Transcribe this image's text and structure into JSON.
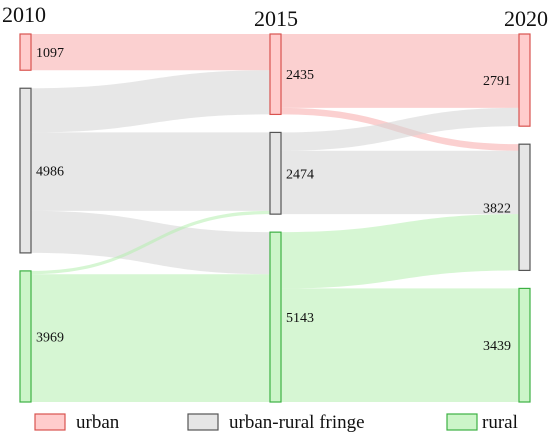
{
  "chart_data": {
    "type": "sankey",
    "columns": [
      "2010",
      "2015",
      "2020"
    ],
    "categories": [
      {
        "key": "urban",
        "label": "urban",
        "fill": "#ffcccc",
        "stroke": "#d9534f",
        "flow": "#f8a9a9"
      },
      {
        "key": "fringe",
        "label": "urban-rural fringe",
        "fill": "#e6e6e6",
        "stroke": "#555555",
        "flow": "#d3d3d3"
      },
      {
        "key": "rural",
        "label": "rural",
        "fill": "#ccf5c8",
        "stroke": "#3cb043",
        "flow": "#b5efaf"
      }
    ],
    "nodes": {
      "2010": {
        "urban": 1097,
        "fringe": 4986,
        "rural": 3969
      },
      "2015": {
        "urban": 2435,
        "fringe": 2474,
        "rural": 5143
      },
      "2020": {
        "urban": 2791,
        "fringe": 3822,
        "rural": 3439
      }
    },
    "flows_2010_2015": [
      {
        "from": "urban",
        "to": "urban",
        "value": 1097
      },
      {
        "from": "fringe",
        "to": "urban",
        "value": 1338
      },
      {
        "from": "fringe",
        "to": "fringe",
        "value": 2374
      },
      {
        "from": "fringe",
        "to": "rural",
        "value": 1274
      },
      {
        "from": "rural",
        "to": "fringe",
        "value": 100
      },
      {
        "from": "rural",
        "to": "rural",
        "value": 3869
      }
    ],
    "flows_2015_2020": [
      {
        "from": "urban",
        "to": "urban",
        "value": 2235
      },
      {
        "from": "urban",
        "to": "fringe",
        "value": 200
      },
      {
        "from": "fringe",
        "to": "urban",
        "value": 556
      },
      {
        "from": "fringe",
        "to": "fringe",
        "value": 1918
      },
      {
        "from": "rural",
        "to": "fringe",
        "value": 1704
      },
      {
        "from": "rural",
        "to": "rural",
        "value": 3439
      }
    ],
    "legend": {
      "placement": "bottom",
      "entries": [
        "urban",
        "urban-rural fringe",
        "rural"
      ]
    }
  }
}
